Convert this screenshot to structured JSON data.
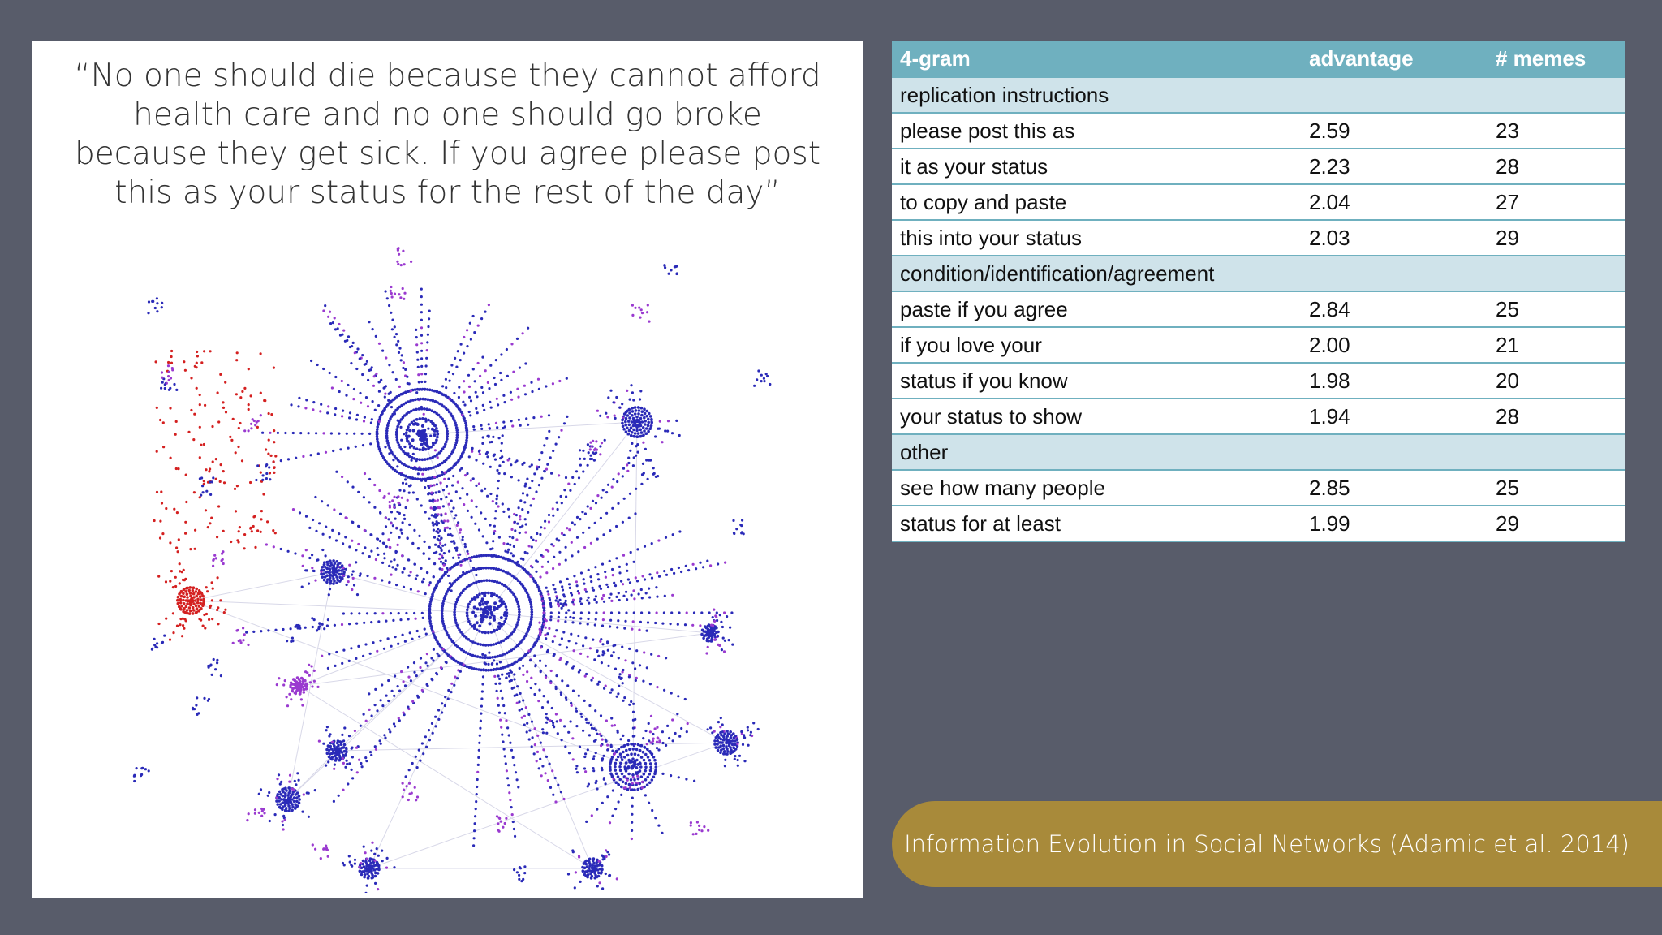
{
  "quote": "“No one should die because they cannot afford health care and no one should go broke because they get sick. If you agree please post this as your status for the rest of the day”",
  "table": {
    "headers": [
      "4-gram",
      "advantage",
      "# memes"
    ],
    "groups": [
      {
        "label": "replication instructions",
        "rows": [
          [
            "please post this as",
            "2.59",
            "23"
          ],
          [
            "it as your status",
            "2.23",
            "28"
          ],
          [
            "to copy and paste",
            "2.04",
            "27"
          ],
          [
            "this into your status",
            "2.03",
            "29"
          ]
        ]
      },
      {
        "label": "condition/identification/agreement",
        "rows": [
          [
            "paste if you agree",
            "2.84",
            "25"
          ],
          [
            "if you love your",
            "2.00",
            "21"
          ],
          [
            "status if you know",
            "1.98",
            "20"
          ],
          [
            "your status to show",
            "1.94",
            "28"
          ]
        ]
      },
      {
        "label": "other",
        "rows": [
          [
            "see how many people",
            "2.85",
            "25"
          ],
          [
            "status for at least",
            "1.99",
            "29"
          ]
        ]
      }
    ]
  },
  "citation": "Information Evolution in Social Networks (Adamic et al. 2014)",
  "colors": {
    "background": "#585c6a",
    "table_header": "#6fb0bf",
    "group_row": "#cfe3ea",
    "citation_bg": "#a88a3a",
    "node_blue": "#2a2ab8",
    "node_purple": "#9a3ad0",
    "node_red": "#d42020"
  }
}
